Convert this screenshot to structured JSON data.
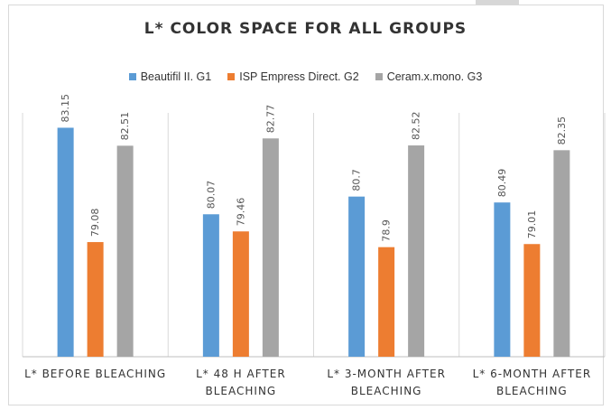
{
  "chart_data": {
    "type": "bar",
    "title": "L* COLOR SPACE FOR ALL GROUPS",
    "categories": [
      [
        "L* BEFORE BLEACHING"
      ],
      [
        "L* 48 H AFTER",
        "BLEACHING"
      ],
      [
        "L*  3-MONTH AFTER",
        "BLEACHING"
      ],
      [
        "L* 6-MONTH AFTER",
        "BLEACHING"
      ]
    ],
    "series": [
      {
        "name": "Beautifil II. G1",
        "color": "#5b9bd5",
        "values": [
          83.15,
          80.07,
          80.7,
          80.49
        ],
        "labels": [
          "83.15",
          "80.07",
          "80.7",
          "80.49"
        ]
      },
      {
        "name": "ISP Empress Direct. G2",
        "color": "#ed7d31",
        "values": [
          79.08,
          79.46,
          78.9,
          79.01
        ],
        "labels": [
          "79.08",
          "79.46",
          "78.9",
          "79.01"
        ]
      },
      {
        "name": "Ceram.x.mono. G3",
        "color": "#a5a5a5",
        "values": [
          82.51,
          82.77,
          82.52,
          82.35
        ],
        "labels": [
          "82.51",
          "82.77",
          "82.52",
          "82.35"
        ]
      }
    ],
    "ylim": [
      75,
      84
    ],
    "grid": false,
    "legend_position": "top"
  }
}
